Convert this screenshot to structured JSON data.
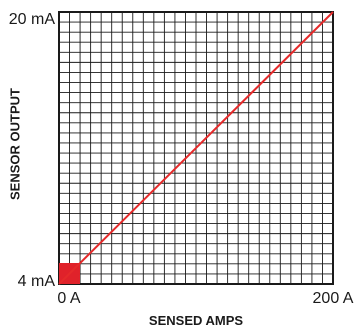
{
  "chart_data": {
    "type": "line",
    "xlabel": "SENSED AMPS",
    "ylabel": "SENSOR OUTPUT",
    "x_unit": "A",
    "y_unit": "mA",
    "xlim": [
      0,
      200
    ],
    "ylim": [
      4,
      20
    ],
    "x_ticks": [
      {
        "value": 0,
        "label": "0 A"
      },
      {
        "value": 200,
        "label": "200 A"
      }
    ],
    "y_ticks": [
      {
        "value": 4,
        "label": "4 mA"
      },
      {
        "value": 20,
        "label": "20 mA"
      }
    ],
    "grid": true,
    "grid_divisions": {
      "x": 26,
      "y": 27
    },
    "series": [
      {
        "x": [
          0,
          200
        ],
        "y": [
          4,
          20
        ],
        "color": "#e52a2a"
      }
    ],
    "origin_marker": {
      "color": "#e0222a",
      "x": 0,
      "y": 4
    }
  }
}
